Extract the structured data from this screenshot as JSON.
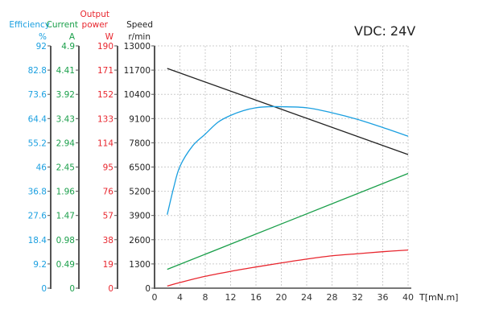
{
  "chart_data": {
    "type": "line",
    "title": "VDC: 24V",
    "xlabel": "T[mN.m]",
    "x_ticks": [
      "0",
      "4",
      "8",
      "12",
      "16",
      "20",
      "24",
      "28",
      "32",
      "36",
      "40"
    ],
    "xlim": [
      0,
      40
    ],
    "grid": true,
    "axes": [
      {
        "id": "efficiency",
        "label": "Efficiency",
        "unit": "%",
        "color": "#1a9fe0",
        "ylim": [
          0,
          92
        ],
        "ticks": [
          "0",
          "9.2",
          "18.4",
          "27.6",
          "36.8",
          "46",
          "55.2",
          "64.4",
          "73.6",
          "82.8",
          "92"
        ]
      },
      {
        "id": "current",
        "label": "Current",
        "unit": "A",
        "color": "#1a9f4a",
        "ylim": [
          0,
          4.9
        ],
        "ticks": [
          "0",
          "0.49",
          "0.98",
          "1.47",
          "1.96",
          "2.45",
          "2.94",
          "3.43",
          "3.92",
          "4.41",
          "4.9"
        ]
      },
      {
        "id": "power",
        "label": "Output power",
        "label_lines": [
          "Output",
          "power"
        ],
        "unit": "W",
        "color": "#e8262e",
        "ylim": [
          0,
          190
        ],
        "ticks": [
          "0",
          "19",
          "38",
          "57",
          "76",
          "95",
          "114",
          "133",
          "152",
          "171",
          "190"
        ]
      },
      {
        "id": "speed",
        "label": "Speed",
        "unit": "r/min",
        "color": "#222222",
        "ylim": [
          0,
          13000
        ],
        "ticks": [
          "0",
          "1300",
          "2600",
          "3900",
          "5200",
          "6500",
          "7800",
          "9100",
          "10400",
          "11700",
          "13000"
        ]
      }
    ],
    "series": [
      {
        "axis": "speed",
        "color": "#222222",
        "x": [
          2,
          40
        ],
        "y": [
          11790,
          7170
        ]
      },
      {
        "axis": "efficiency",
        "color": "#1a9fe0",
        "x": [
          2,
          3,
          4,
          6,
          8,
          10,
          12,
          14,
          16,
          18,
          20,
          24,
          28,
          32,
          36,
          40
        ],
        "y": [
          27.9,
          38,
          46.2,
          54,
          58.5,
          63,
          65.6,
          67.4,
          68.5,
          68.9,
          68.9,
          68.5,
          66.6,
          64.1,
          61.0,
          57.7
        ]
      },
      {
        "axis": "current",
        "color": "#1a9f4a",
        "x": [
          2,
          40
        ],
        "y": [
          0.38,
          2.32
        ]
      },
      {
        "axis": "power",
        "color": "#e8262e",
        "x": [
          2,
          4,
          8,
          12,
          16,
          20,
          24,
          28,
          32,
          36,
          40
        ],
        "y": [
          1.7,
          4.4,
          9.3,
          13.2,
          16.6,
          19.8,
          22.8,
          25.4,
          27.0,
          28.6,
          29.9
        ]
      }
    ]
  }
}
